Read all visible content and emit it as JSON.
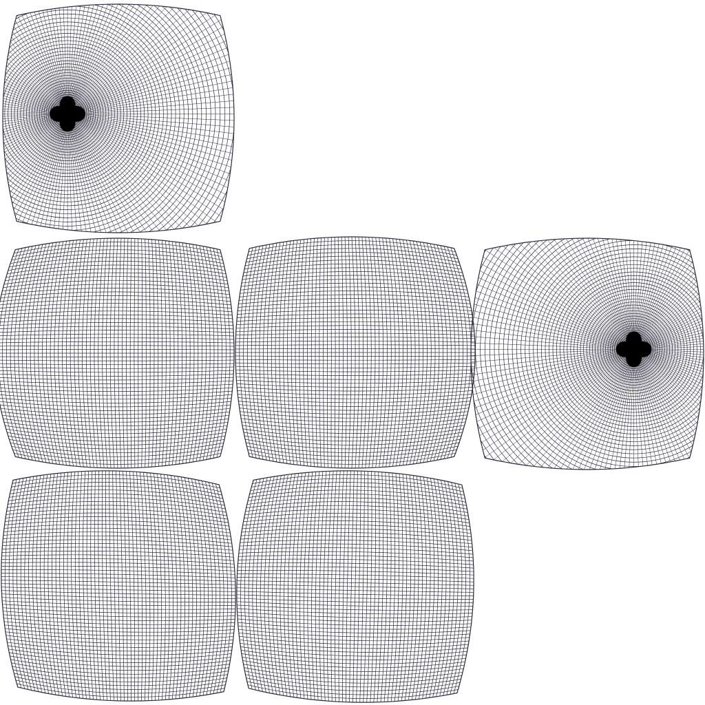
{
  "style": {
    "background": "#ffffff",
    "line_color": "#2a2a3a"
  },
  "figure": {
    "description_type": "cube-map UV layout of subdivided grid faces",
    "panels": [
      {
        "name": "face-top",
        "kind": "pole",
        "pole": "left"
      },
      {
        "name": "face-left",
        "kind": "grid",
        "bulge": "left"
      },
      {
        "name": "face-front",
        "kind": "grid",
        "bulge": "right"
      },
      {
        "name": "face-right",
        "kind": "pole",
        "pole": "right"
      },
      {
        "name": "face-bottom-left",
        "kind": "grid",
        "bulge": "diag-left"
      },
      {
        "name": "face-bottom-right",
        "kind": "grid",
        "bulge": "diag-right"
      }
    ]
  }
}
